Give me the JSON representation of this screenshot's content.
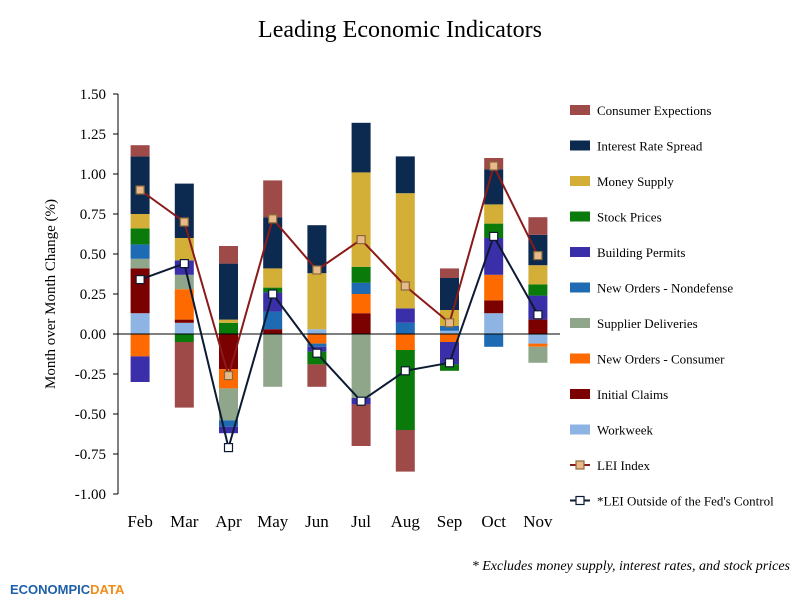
{
  "chart_data": {
    "type": "bar",
    "title": "Leading Economic Indicators",
    "ylabel": "Month over Month Change (%)",
    "xlabel": "",
    "ylim": [
      -1.0,
      1.5
    ],
    "yticks": [
      "1.50",
      "1.25",
      "1.00",
      "0.75",
      "0.50",
      "0.25",
      "0.00",
      "-0.25",
      "-0.50",
      "-0.75",
      "-1.00"
    ],
    "ytick_values": [
      1.5,
      1.25,
      1.0,
      0.75,
      0.5,
      0.25,
      0.0,
      -0.25,
      -0.5,
      -0.75,
      -1.0
    ],
    "categories": [
      "Feb",
      "Mar",
      "Apr",
      "May",
      "Jun",
      "Jul",
      "Aug",
      "Sep",
      "Oct",
      "Nov"
    ],
    "stacked": true,
    "legend_position": "right",
    "series": [
      {
        "name": "Workweek",
        "color": "#8db4e2",
        "values": [
          0.13,
          0.07,
          0.0,
          0.0,
          0.03,
          0.0,
          0.0,
          0.02,
          0.13,
          -0.06
        ]
      },
      {
        "name": "Initial Claims",
        "color": "#7b0000",
        "values": [
          0.28,
          0.02,
          -0.22,
          0.03,
          0.0,
          0.13,
          0.0,
          0.0,
          0.08,
          0.09
        ]
      },
      {
        "name": "New Orders - Consumer",
        "color": "#ff6a00",
        "values": [
          -0.14,
          0.19,
          -0.12,
          0.0,
          -0.06,
          0.12,
          -0.1,
          -0.05,
          0.16,
          -0.02
        ]
      },
      {
        "name": "Supplier Deliveries",
        "color": "#8fa68a",
        "values": [
          0.06,
          0.09,
          -0.2,
          -0.33,
          0.0,
          -0.4,
          0.0,
          0.0,
          0.0,
          -0.1
        ]
      },
      {
        "name": "New Orders - Nondefense",
        "color": "#1f6bb3",
        "values": [
          0.09,
          0.0,
          -0.04,
          0.11,
          -0.02,
          0.07,
          0.07,
          0.03,
          -0.08,
          0.0
        ]
      },
      {
        "name": "Building Permits",
        "color": "#3a2fa8",
        "values": [
          -0.16,
          0.09,
          -0.04,
          0.12,
          -0.03,
          -0.04,
          0.09,
          -0.14,
          0.23,
          0.15
        ]
      },
      {
        "name": "Stock Prices",
        "color": "#0a7a0a",
        "values": [
          0.1,
          -0.05,
          0.07,
          0.03,
          -0.08,
          0.1,
          -0.5,
          -0.04,
          0.09,
          0.07
        ]
      },
      {
        "name": "Money Supply",
        "color": "#d4af37",
        "values": [
          0.09,
          0.14,
          0.02,
          0.12,
          0.35,
          0.59,
          0.72,
          0.1,
          0.12,
          0.12
        ]
      },
      {
        "name": "Interest Rate Spread",
        "color": "#0c2a4f",
        "values": [
          0.36,
          0.34,
          0.35,
          0.32,
          0.3,
          0.31,
          0.23,
          0.2,
          0.22,
          0.19
        ]
      },
      {
        "name": "Consumer Expections",
        "color": "#9e4a48",
        "values": [
          0.07,
          -0.41,
          0.11,
          0.23,
          -0.14,
          -0.26,
          -0.26,
          0.06,
          0.07,
          0.11
        ]
      }
    ],
    "legend_order": [
      "Consumer Expections",
      "Interest Rate Spread",
      "Money Supply",
      "Stock Prices",
      "Building Permits",
      "New Orders - Nondefense",
      "Supplier Deliveries",
      "New Orders - Consumer",
      "Initial Claims",
      "Workweek"
    ],
    "lines": [
      {
        "name": "LEI Index",
        "color": "#8b1a1a",
        "marker_fill": "#e8b98a",
        "marker_stroke": "#8b6a3a",
        "values": [
          0.9,
          0.7,
          -0.26,
          0.72,
          0.4,
          0.59,
          0.3,
          0.07,
          1.05,
          0.49
        ]
      },
      {
        "name": "*LEI Outside of the Fed's Control",
        "color": "#0c1a33",
        "marker_fill": "#ffffff",
        "marker_stroke": "#0c1a33",
        "values": [
          0.34,
          0.44,
          -0.71,
          0.25,
          -0.12,
          -0.42,
          -0.23,
          -0.18,
          0.61,
          0.12
        ]
      }
    ]
  },
  "footnote": "* Excludes money supply, interest rates, and stock prices",
  "logo": {
    "text": "ECONOMPICDATA",
    "colors": {
      "blue": "#1d5fa8",
      "orange": "#f28c1a"
    }
  }
}
